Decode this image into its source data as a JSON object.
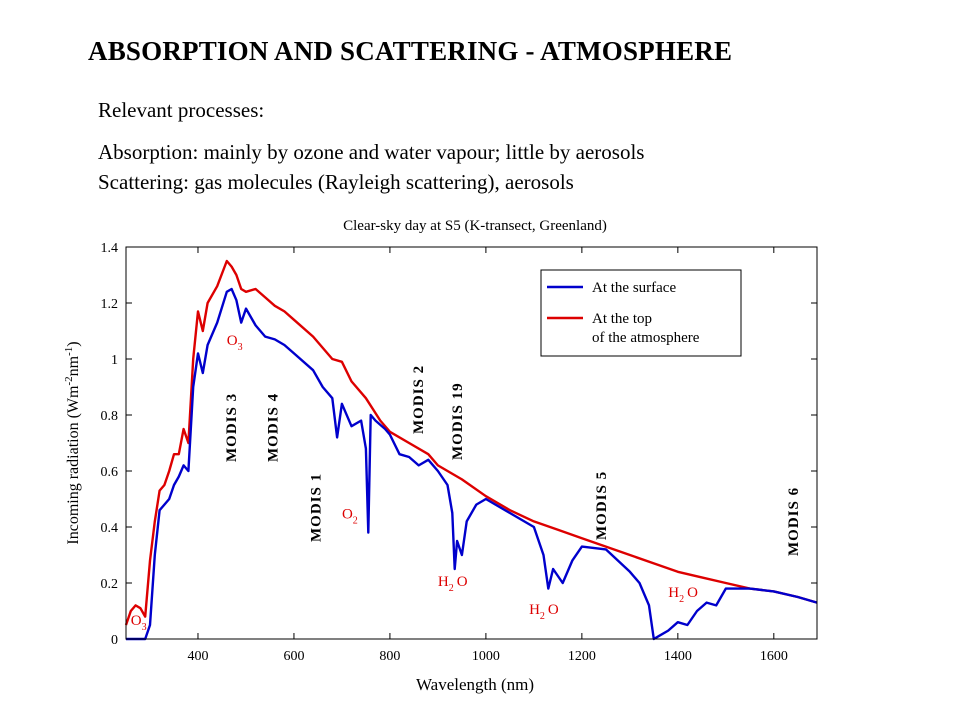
{
  "slide": {
    "title": "ABSORPTION AND SCATTERING - ATMOSPHERE",
    "subtitle": "Relevant processes:",
    "line_absorption": "Absorption: mainly by ozone and water vapour; little by aerosols",
    "line_scattering": "Scattering: gas molecules (Rayleigh scattering), aerosols"
  },
  "chart_data": {
    "type": "line",
    "title": "Clear-sky day at S5 (K-transect, Greenland)",
    "xlabel": "Wavelength (nm)",
    "ylabel": "Incoming radiation (Wm-2nm-1)",
    "xlim": [
      250,
      1690
    ],
    "ylim": [
      0,
      1.4
    ],
    "xticks": [
      400,
      600,
      800,
      1000,
      1200,
      1400,
      1600
    ],
    "yticks": [
      0,
      0.2,
      0.4,
      0.6,
      0.8,
      1,
      1.2,
      1.4
    ],
    "ytick_labels": [
      "0",
      "0.2",
      "0.4",
      "0.6",
      "0.8",
      "1",
      "1.2",
      "1.4"
    ],
    "legend_position": "top-right",
    "colors": {
      "surface": "#0000cc",
      "toa": "#dd0000",
      "annotation": "#dd0000"
    },
    "series": [
      {
        "name": "At the top of the atmosphere",
        "key": "toa",
        "x": [
          250,
          260,
          270,
          280,
          290,
          300,
          310,
          320,
          330,
          340,
          350,
          360,
          370,
          380,
          390,
          400,
          410,
          420,
          440,
          460,
          470,
          480,
          490,
          500,
          520,
          540,
          560,
          580,
          600,
          640,
          680,
          700,
          720,
          750,
          780,
          800,
          840,
          880,
          900,
          950,
          1000,
          1050,
          1100,
          1150,
          1200,
          1250,
          1300,
          1350,
          1400,
          1450,
          1500,
          1550,
          1600,
          1650,
          1690
        ],
        "y": [
          0.05,
          0.1,
          0.12,
          0.11,
          0.08,
          0.28,
          0.42,
          0.53,
          0.55,
          0.6,
          0.66,
          0.66,
          0.75,
          0.7,
          1.0,
          1.17,
          1.1,
          1.2,
          1.26,
          1.35,
          1.33,
          1.3,
          1.25,
          1.24,
          1.25,
          1.22,
          1.19,
          1.17,
          1.14,
          1.08,
          1.0,
          0.99,
          0.92,
          0.86,
          0.78,
          0.74,
          0.7,
          0.66,
          0.62,
          0.57,
          0.51,
          0.46,
          0.42,
          0.39,
          0.36,
          0.33,
          0.3,
          0.27,
          0.24,
          0.22,
          0.2,
          0.18,
          0.17,
          0.15,
          0.13
        ]
      },
      {
        "name": "At the surface",
        "key": "surface",
        "x": [
          250,
          280,
          290,
          300,
          310,
          320,
          330,
          340,
          350,
          360,
          370,
          380,
          390,
          400,
          410,
          420,
          440,
          460,
          470,
          480,
          490,
          500,
          520,
          540,
          560,
          580,
          600,
          640,
          660,
          680,
          690,
          700,
          720,
          740,
          750,
          755,
          760,
          770,
          790,
          800,
          820,
          840,
          860,
          880,
          900,
          920,
          930,
          935,
          940,
          950,
          960,
          980,
          1000,
          1050,
          1100,
          1120,
          1130,
          1140,
          1160,
          1180,
          1200,
          1250,
          1300,
          1320,
          1340,
          1350,
          1360,
          1380,
          1400,
          1420,
          1440,
          1460,
          1480,
          1500,
          1550,
          1600,
          1650,
          1690
        ],
        "y": [
          0,
          0,
          0,
          0.05,
          0.3,
          0.46,
          0.48,
          0.5,
          0.55,
          0.58,
          0.62,
          0.6,
          0.9,
          1.02,
          0.95,
          1.05,
          1.13,
          1.24,
          1.25,
          1.21,
          1.13,
          1.18,
          1.12,
          1.08,
          1.07,
          1.05,
          1.02,
          0.96,
          0.9,
          0.86,
          0.72,
          0.84,
          0.76,
          0.78,
          0.68,
          0.38,
          0.8,
          0.78,
          0.75,
          0.73,
          0.66,
          0.65,
          0.62,
          0.64,
          0.6,
          0.55,
          0.45,
          0.25,
          0.35,
          0.3,
          0.42,
          0.48,
          0.5,
          0.45,
          0.4,
          0.3,
          0.18,
          0.25,
          0.2,
          0.28,
          0.33,
          0.32,
          0.24,
          0.2,
          0.12,
          0.0,
          0.01,
          0.03,
          0.06,
          0.05,
          0.1,
          0.13,
          0.12,
          0.18,
          0.18,
          0.17,
          0.15,
          0.13
        ]
      }
    ],
    "modis_bands": [
      {
        "label": "MODIS 3",
        "x": 469
      },
      {
        "label": "MODIS 4",
        "x": 555
      },
      {
        "label": "MODIS 1",
        "x": 645
      },
      {
        "label": "MODIS 2",
        "x": 858
      },
      {
        "label": "MODIS 19",
        "x": 940
      },
      {
        "label": "MODIS 5",
        "x": 1240
      },
      {
        "label": "MODIS 6",
        "x": 1640
      }
    ],
    "annotations": [
      {
        "species": "O",
        "sub": "3",
        "x": 460,
        "y": 1.05
      },
      {
        "species": "O",
        "sub": "2",
        "x": 700,
        "y": 0.43
      },
      {
        "species": "H",
        "sub": "2",
        "tail": "O",
        "x": 900,
        "y": 0.19
      },
      {
        "species": "H",
        "sub": "2",
        "tail": "O",
        "x": 1090,
        "y": 0.09
      },
      {
        "species": "H",
        "sub": "2",
        "tail": "O",
        "x": 1380,
        "y": 0.15
      },
      {
        "species": "O",
        "sub": "3",
        "x": 260,
        "y": 0.05
      }
    ]
  }
}
